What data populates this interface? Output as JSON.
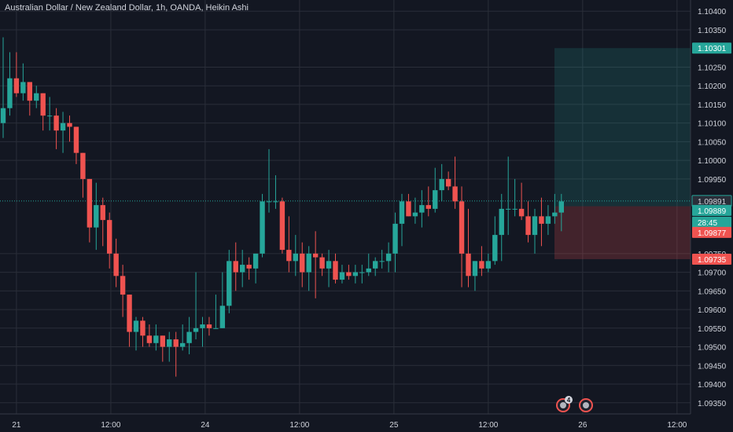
{
  "header": {
    "title": "Australian Dollar / New Zealand Dollar, 1h, OANDA, Heikin Ashi"
  },
  "colors": {
    "up": "#26a69a",
    "down": "#ef5350",
    "background": "#131722",
    "grid": "#2a2e39",
    "text": "#d1d4dc"
  },
  "chart_data": {
    "type": "candlestick",
    "title": "Australian Dollar / New Zealand Dollar, 1h, OANDA, Heikin Ashi",
    "y_ticks": [
      "1.10400",
      "1.10350",
      "1.10250",
      "1.10200",
      "1.10150",
      "1.10100",
      "1.10050",
      "1.10000",
      "1.09950",
      "1.09750",
      "1.09700",
      "1.09650",
      "1.09600",
      "1.09550",
      "1.09500",
      "1.09450",
      "1.09400",
      "1.09350"
    ],
    "x_ticks": [
      "21",
      "12:00",
      "24",
      "12:00",
      "25",
      "12:00",
      "26",
      "12:00"
    ],
    "ylim": [
      1.0932,
      1.1043
    ],
    "grid": true,
    "candles": [
      [
        1.101,
        1.1033,
        1.1006,
        1.1014
      ],
      [
        1.1014,
        1.1029,
        1.1012,
        1.1022
      ],
      [
        1.1022,
        1.1029,
        1.1017,
        1.1018
      ],
      [
        1.1018,
        1.1026,
        1.1016,
        1.1021
      ],
      [
        1.1021,
        1.1021,
        1.1012,
        1.1016
      ],
      [
        1.1016,
        1.102,
        1.1014,
        1.1018
      ],
      [
        1.1018,
        1.1018,
        1.1008,
        1.1012
      ],
      [
        1.1012,
        1.1017,
        1.1008,
        1.1012
      ],
      [
        1.1012,
        1.1014,
        1.1003,
        1.1008
      ],
      [
        1.1008,
        1.1013,
        1.1002,
        1.101
      ],
      [
        1.101,
        1.1012,
        1.1005,
        1.1009
      ],
      [
        1.1009,
        1.1009,
        1.0999,
        1.1002
      ],
      [
        1.1002,
        1.1002,
        1.099,
        1.0995
      ],
      [
        1.0995,
        1.0995,
        1.0978,
        1.0982
      ],
      [
        1.0982,
        1.0994,
        1.0976,
        1.0988
      ],
      [
        1.0988,
        1.099,
        1.0977,
        1.0984
      ],
      [
        1.0984,
        1.0986,
        1.0971,
        1.0975
      ],
      [
        1.0975,
        1.0979,
        1.0966,
        1.0969
      ],
      [
        1.0969,
        1.0972,
        1.0958,
        1.0964
      ],
      [
        1.0964,
        1.0964,
        1.095,
        1.0954
      ],
      [
        1.0954,
        1.0958,
        1.0949,
        1.0957
      ],
      [
        1.0957,
        1.0958,
        1.095,
        1.0953
      ],
      [
        1.0953,
        1.0956,
        1.095,
        1.0951
      ],
      [
        1.0951,
        1.0956,
        1.0949,
        1.0953
      ],
      [
        1.0953,
        1.0953,
        1.0946,
        1.095
      ],
      [
        1.095,
        1.0954,
        1.0946,
        1.0952
      ],
      [
        1.0952,
        1.0954,
        1.0942,
        1.095
      ],
      [
        1.095,
        1.0956,
        1.0949,
        1.0951
      ],
      [
        1.0951,
        1.0958,
        1.0948,
        1.0954
      ],
      [
        1.0954,
        1.097,
        1.0952,
        1.0955
      ],
      [
        1.0955,
        1.0958,
        1.095,
        1.0956
      ],
      [
        1.0956,
        1.0958,
        1.0953,
        1.0955
      ],
      [
        1.0955,
        1.0964,
        1.0955,
        1.0955
      ],
      [
        1.0955,
        1.097,
        1.0955,
        1.0961
      ],
      [
        1.0961,
        1.0976,
        1.0959,
        1.0973
      ],
      [
        1.0973,
        1.0978,
        1.0965,
        1.097
      ],
      [
        1.097,
        1.0976,
        1.0966,
        1.0972
      ],
      [
        1.0972,
        1.0974,
        1.0968,
        1.0971
      ],
      [
        1.0971,
        1.0974,
        1.0967,
        1.0975
      ],
      [
        1.0975,
        1.0991,
        1.0974,
        1.0989
      ],
      [
        1.0989,
        1.1003,
        1.0986,
        1.0989
      ],
      [
        1.0989,
        1.0996,
        1.0987,
        1.0989
      ],
      [
        1.0989,
        1.099,
        1.0975,
        1.0976
      ],
      [
        1.0976,
        1.0985,
        1.097,
        1.0973
      ],
      [
        1.0973,
        1.098,
        1.0969,
        1.0975
      ],
      [
        1.0975,
        1.0978,
        1.0966,
        1.097
      ],
      [
        1.097,
        1.0977,
        1.0965,
        1.0975
      ],
      [
        1.0975,
        1.0981,
        1.0963,
        1.0974
      ],
      [
        1.0974,
        1.0975,
        1.0969,
        1.0971
      ],
      [
        1.0971,
        1.0976,
        1.0966,
        1.0973
      ],
      [
        1.0973,
        1.0975,
        1.0967,
        1.0968
      ],
      [
        1.0968,
        1.0972,
        1.0967,
        1.097
      ],
      [
        1.097,
        1.0972,
        1.0968,
        1.0969
      ],
      [
        1.0969,
        1.0972,
        1.0967,
        1.097
      ],
      [
        1.097,
        1.0972,
        1.0967,
        1.097
      ],
      [
        1.097,
        1.0975,
        1.0969,
        1.0971
      ],
      [
        1.0971,
        1.0974,
        1.0969,
        1.0973
      ],
      [
        1.0973,
        1.0976,
        1.0971,
        1.0973
      ],
      [
        1.0973,
        1.0978,
        1.097,
        1.0975
      ],
      [
        1.0975,
        1.0986,
        1.097,
        1.0983
      ],
      [
        1.0983,
        1.0991,
        1.0977,
        1.0989
      ],
      [
        1.0989,
        1.0991,
        1.0985,
        1.0985
      ],
      [
        1.0985,
        1.099,
        1.0983,
        1.0986
      ],
      [
        1.0986,
        1.0992,
        1.0982,
        1.0988
      ],
      [
        1.0988,
        1.0993,
        1.0985,
        1.0987
      ],
      [
        1.0987,
        1.0998,
        1.0986,
        1.0992
      ],
      [
        1.0992,
        1.0999,
        1.0989,
        1.0995
      ],
      [
        1.0995,
        1.0997,
        1.0992,
        1.0993
      ],
      [
        1.0993,
        1.1001,
        1.0987,
        1.0989
      ],
      [
        1.0989,
        1.0993,
        1.0966,
        1.0975
      ],
      [
        1.0975,
        1.0987,
        1.0966,
        1.0969
      ],
      [
        1.0969,
        1.0973,
        1.0965,
        1.0973
      ],
      [
        1.0973,
        1.0977,
        1.0969,
        1.0971
      ],
      [
        1.0971,
        1.0975,
        1.097,
        1.0973
      ],
      [
        1.0973,
        1.0985,
        1.0972,
        1.098
      ],
      [
        1.098,
        1.0991,
        1.0973,
        1.0987
      ],
      [
        1.0987,
        1.1001,
        1.098,
        1.0987
      ],
      [
        1.0987,
        1.0995,
        1.0985,
        1.0987
      ],
      [
        1.0987,
        1.0994,
        1.0984,
        1.0985
      ],
      [
        1.0985,
        1.0989,
        1.0978,
        1.098
      ],
      [
        1.098,
        1.0987,
        1.0975,
        1.0985
      ],
      [
        1.0985,
        1.099,
        1.0977,
        1.0983
      ],
      [
        1.0983,
        1.0988,
        1.098,
        1.0985
      ],
      [
        1.0985,
        1.0991,
        1.0983,
        1.0986
      ],
      [
        1.0986,
        1.0991,
        1.0981,
        1.0989
      ]
    ],
    "last_price": "1.09891",
    "price_labels": [
      {
        "value": "1.10301",
        "kind": "target"
      },
      {
        "value": "1.09891",
        "kind": "last"
      },
      {
        "value": "1.09889",
        "kind": "current"
      },
      {
        "value": "28:45",
        "kind": "countdown"
      },
      {
        "value": "1.09877",
        "kind": "entry"
      },
      {
        "value": "1.09735",
        "kind": "stop"
      }
    ],
    "position": {
      "entry": 1.09877,
      "target": 1.10301,
      "stop": 1.09735
    },
    "event_badges": [
      {
        "count": "4"
      },
      {
        "count": ""
      }
    ]
  }
}
